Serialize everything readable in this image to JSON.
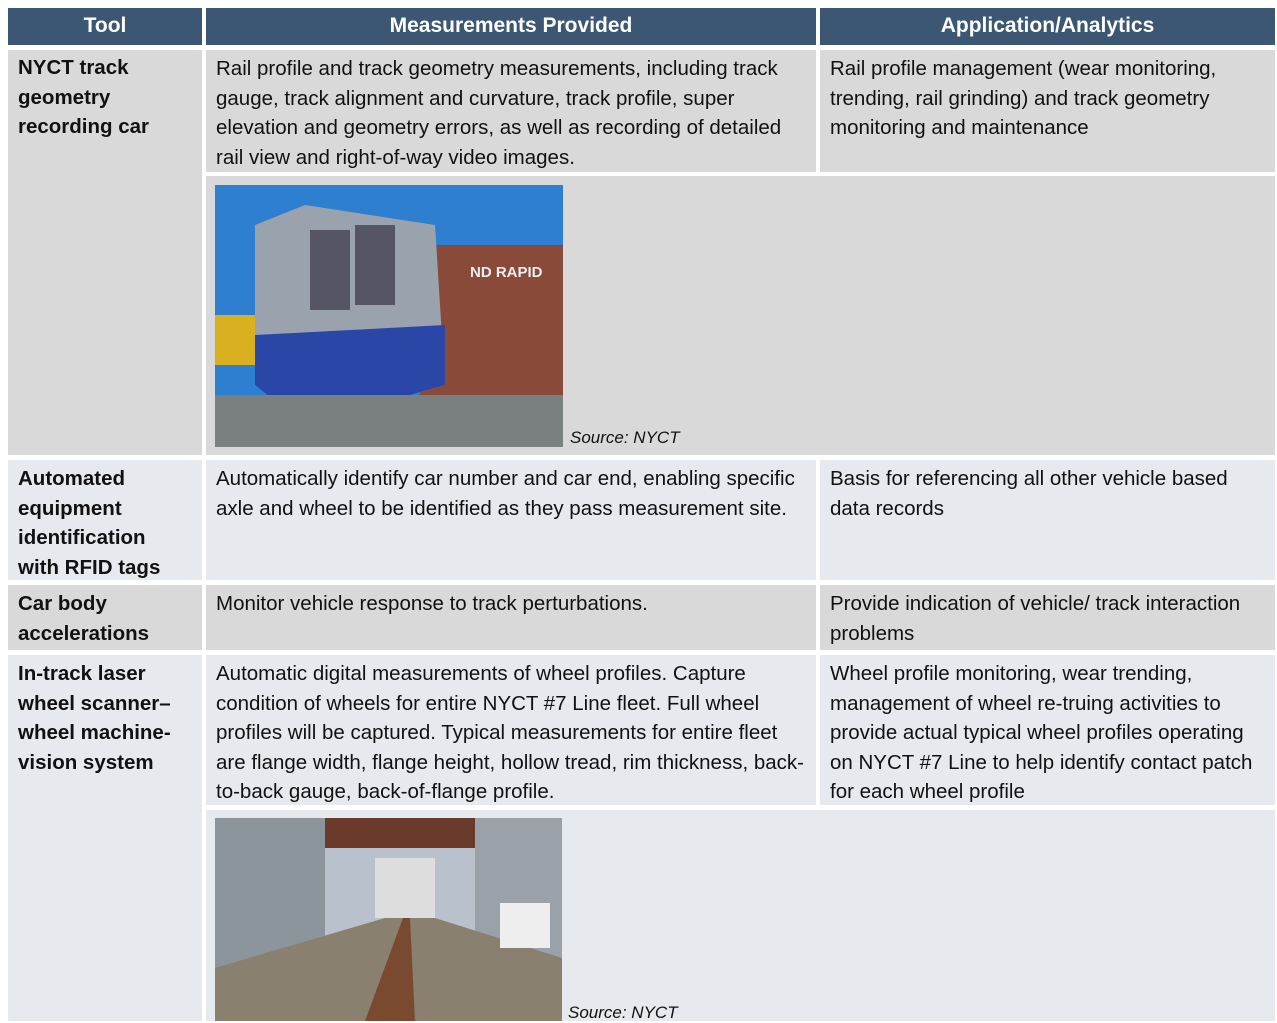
{
  "table": {
    "header": [
      "Tool",
      "Measurements Provided",
      "Application/Analytics"
    ],
    "rows": [
      [
        "NYCT track geometry recording car",
        "Rail profile and track geometry measurements, including track gauge, track alignment and curvature, track profile, super elevation and geometry errors, as well as recording of detailed rail view and right-of-way video images.",
        "Rail profile management (wear monitoring, trending, rail grinding) and track geometry monitoring and maintenance"
      ],
      [
        "Automated equipment identification with RFID tags",
        "Automatically identify car number and car end, enabling specific axle and wheel to be identified as they pass measurement site.",
        "Basis for referencing all other vehicle based data records"
      ],
      [
        "Car body accelerations",
        "Monitor vehicle response to track perturbations.",
        "Provide indication of vehicle/ track interaction problems"
      ],
      [
        "In-track laser wheel scanner–wheel machine-vision system",
        "Automatic digital measurements of wheel profiles. Capture condition of wheels for entire NYCT #7 Line fleet. Full wheel profiles will be captured. Typical measurements for entire fleet are flange width, flange height, hollow tread, rim thickness, back-to-back gauge, back-of-flange profile.",
        "Wheel profile monitoring, wear trending, management of wheel re-truing activities to provide actual typical wheel profiles operating on NYCT #7 Line to help identify contact patch for each wheel profile"
      ]
    ],
    "image_sources": [
      "Source: NYCT",
      "Source: NYCT"
    ]
  }
}
